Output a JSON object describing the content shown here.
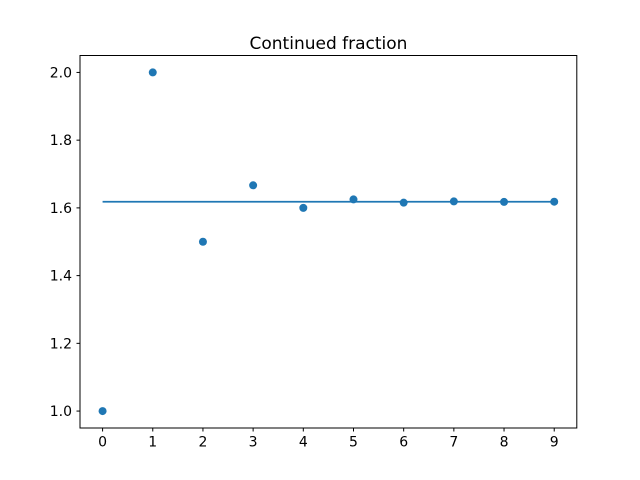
{
  "window": {
    "background": "#ffffff"
  },
  "chart_data": {
    "type": "scatter",
    "title": "Continued fraction",
    "xlabel": "",
    "ylabel": "",
    "grid": false,
    "legend": false,
    "xlim": [
      -0.45,
      9.45
    ],
    "ylim": [
      0.95,
      2.05
    ],
    "x": [
      0,
      1,
      2,
      3,
      4,
      5,
      6,
      7,
      8,
      9
    ],
    "series": [
      {
        "name": "golden-ratio-limit-line",
        "type": "line",
        "color": "#1f77b4",
        "values": [
          1.618034,
          1.618034,
          1.618034,
          1.618034,
          1.618034,
          1.618034,
          1.618034,
          1.618034,
          1.618034,
          1.618034
        ]
      },
      {
        "name": "continued-fraction-convergents",
        "type": "scatter",
        "color": "#1f77b4",
        "values": [
          1.0,
          2.0,
          1.5,
          1.666667,
          1.6,
          1.625,
          1.615385,
          1.619048,
          1.617647,
          1.618182
        ]
      }
    ],
    "xticks": [
      {
        "value": 0,
        "label": "0"
      },
      {
        "value": 1,
        "label": "1"
      },
      {
        "value": 2,
        "label": "2"
      },
      {
        "value": 3,
        "label": "3"
      },
      {
        "value": 4,
        "label": "4"
      },
      {
        "value": 5,
        "label": "5"
      },
      {
        "value": 6,
        "label": "6"
      },
      {
        "value": 7,
        "label": "7"
      },
      {
        "value": 8,
        "label": "8"
      },
      {
        "value": 9,
        "label": "9"
      }
    ],
    "yticks": [
      {
        "value": 1.0,
        "label": "1.0"
      },
      {
        "value": 1.2,
        "label": "1.2"
      },
      {
        "value": 1.4,
        "label": "1.4"
      },
      {
        "value": 1.6,
        "label": "1.6"
      },
      {
        "value": 1.8,
        "label": "1.8"
      },
      {
        "value": 2.0,
        "label": "2.0"
      }
    ],
    "colors": {
      "accent": "#1f77b4",
      "axes": "#000000",
      "text": "#000000",
      "background": "#ffffff"
    }
  }
}
